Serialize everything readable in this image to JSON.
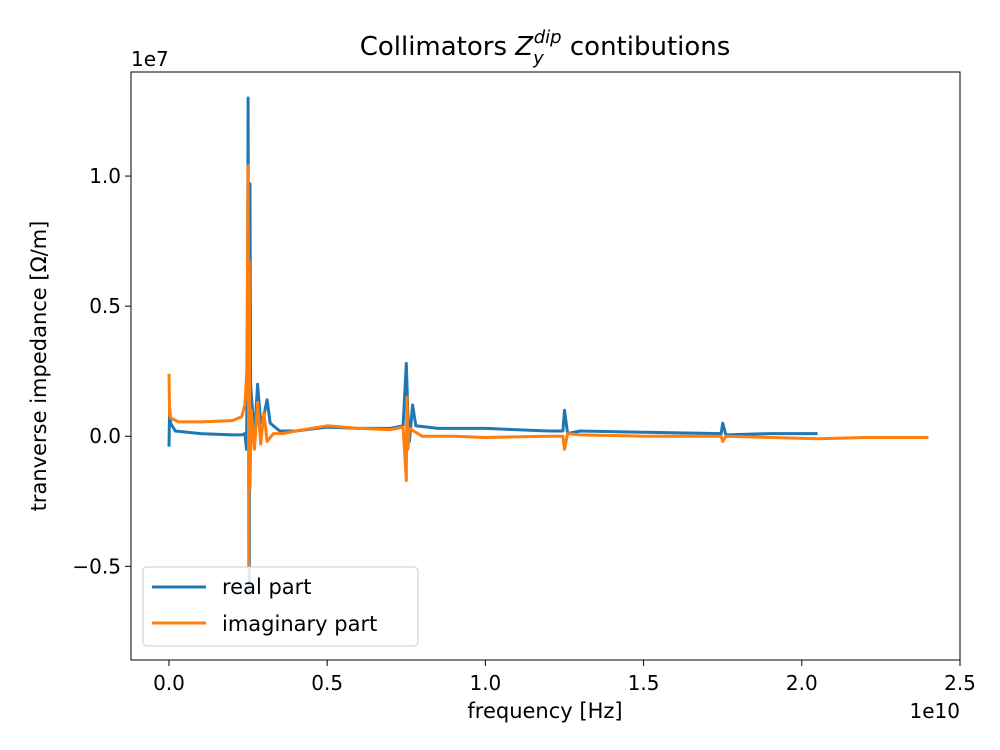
{
  "chart_data": {
    "type": "line",
    "title_prefix": "Collimators ",
    "title_symbol": "Z",
    "title_sub": "y",
    "title_sup": "dip",
    "title_suffix": " contibutions",
    "xlabel": "frequency [Hz]",
    "ylabel": "tranverse impedance [Ω/m]",
    "x_offset_label": "1e10",
    "y_offset_label": "1e7",
    "xlim": [
      -0.12,
      2.5
    ],
    "ylim": [
      -0.86,
      1.4
    ],
    "x_ticks": [
      {
        "value": 0.0,
        "label": "0.0"
      },
      {
        "value": 0.5,
        "label": "0.5"
      },
      {
        "value": 1.0,
        "label": "1.0"
      },
      {
        "value": 1.5,
        "label": "1.5"
      },
      {
        "value": 2.0,
        "label": "2.0"
      },
      {
        "value": 2.5,
        "label": "2.5"
      }
    ],
    "y_ticks": [
      {
        "value": -0.5,
        "label": "−0.5"
      },
      {
        "value": 0.0,
        "label": "0.0"
      },
      {
        "value": 0.5,
        "label": "0.5"
      },
      {
        "value": 1.0,
        "label": "1.0"
      }
    ],
    "grid": false,
    "legend_position": "lower-left",
    "series": [
      {
        "name": "real part",
        "color": "#1f77b4",
        "points": [
          [
            0.0,
            -0.04
          ],
          [
            0.002,
            0.11
          ],
          [
            0.005,
            0.05
          ],
          [
            0.02,
            0.02
          ],
          [
            0.1,
            0.01
          ],
          [
            0.2,
            0.005
          ],
          [
            0.23,
            0.005
          ],
          [
            0.24,
            0.01
          ],
          [
            0.245,
            -0.05
          ],
          [
            0.248,
            0.3
          ],
          [
            0.25,
            1.3
          ],
          [
            0.252,
            0.1
          ],
          [
            0.254,
            -0.6
          ],
          [
            0.256,
            0.97
          ],
          [
            0.258,
            0.2
          ],
          [
            0.27,
            0.0
          ],
          [
            0.28,
            0.2
          ],
          [
            0.29,
            0.05
          ],
          [
            0.3,
            0.08
          ],
          [
            0.31,
            0.14
          ],
          [
            0.32,
            0.05
          ],
          [
            0.35,
            0.02
          ],
          [
            0.4,
            0.02
          ],
          [
            0.5,
            0.035
          ],
          [
            0.6,
            0.03
          ],
          [
            0.7,
            0.03
          ],
          [
            0.74,
            0.04
          ],
          [
            0.75,
            0.28
          ],
          [
            0.755,
            0.08
          ],
          [
            0.76,
            -0.02
          ],
          [
            0.77,
            0.12
          ],
          [
            0.78,
            0.04
          ],
          [
            0.85,
            0.03
          ],
          [
            1.0,
            0.03
          ],
          [
            1.2,
            0.02
          ],
          [
            1.245,
            0.02
          ],
          [
            1.25,
            0.1
          ],
          [
            1.26,
            0.01
          ],
          [
            1.3,
            0.02
          ],
          [
            1.5,
            0.015
          ],
          [
            1.745,
            0.01
          ],
          [
            1.75,
            0.05
          ],
          [
            1.76,
            0.005
          ],
          [
            1.9,
            0.01
          ],
          [
            2.05,
            0.01
          ]
        ]
      },
      {
        "name": "imaginary part",
        "color": "#ff7f0e",
        "points": [
          [
            0.0,
            0.24
          ],
          [
            0.002,
            0.08
          ],
          [
            0.005,
            0.07
          ],
          [
            0.03,
            0.055
          ],
          [
            0.1,
            0.055
          ],
          [
            0.2,
            0.06
          ],
          [
            0.23,
            0.075
          ],
          [
            0.24,
            0.12
          ],
          [
            0.246,
            0.25
          ],
          [
            0.248,
            0.6
          ],
          [
            0.25,
            1.04
          ],
          [
            0.252,
            -0.5
          ],
          [
            0.254,
            0.67
          ],
          [
            0.256,
            -0.2
          ],
          [
            0.26,
            0.1
          ],
          [
            0.27,
            -0.05
          ],
          [
            0.28,
            0.13
          ],
          [
            0.29,
            -0.03
          ],
          [
            0.3,
            0.09
          ],
          [
            0.31,
            -0.02
          ],
          [
            0.33,
            0.01
          ],
          [
            0.36,
            0.01
          ],
          [
            0.4,
            0.02
          ],
          [
            0.5,
            0.04
          ],
          [
            0.6,
            0.03
          ],
          [
            0.7,
            0.025
          ],
          [
            0.74,
            0.035
          ],
          [
            0.75,
            -0.17
          ],
          [
            0.752,
            0.15
          ],
          [
            0.755,
            -0.05
          ],
          [
            0.76,
            0.03
          ],
          [
            0.8,
            0.0
          ],
          [
            0.9,
            0.0
          ],
          [
            1.0,
            -0.005
          ],
          [
            1.2,
            0.0
          ],
          [
            1.245,
            0.0
          ],
          [
            1.25,
            -0.05
          ],
          [
            1.26,
            0.01
          ],
          [
            1.3,
            0.005
          ],
          [
            1.5,
            0.0
          ],
          [
            1.745,
            0.0
          ],
          [
            1.75,
            -0.02
          ],
          [
            1.76,
            0.0
          ],
          [
            2.05,
            -0.01
          ],
          [
            2.2,
            -0.005
          ],
          [
            2.4,
            -0.005
          ]
        ]
      }
    ]
  }
}
